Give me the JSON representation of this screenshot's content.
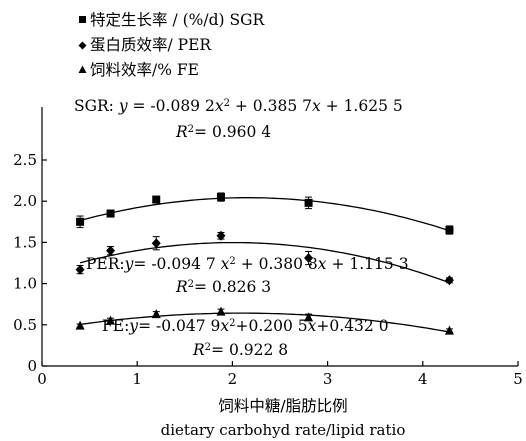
{
  "chart_data": {
    "type": "scatter",
    "x": [
      0.4,
      0.72,
      1.2,
      1.88,
      2.8,
      4.28
    ],
    "xlim": [
      0,
      5
    ],
    "ylim": [
      0,
      2.5
    ],
    "xticks": [
      "0",
      "1",
      "2",
      "3",
      "4",
      "5"
    ],
    "yticks": [
      "0",
      "0.5",
      "1.0",
      "1.5",
      "2.0",
      "2.5"
    ],
    "xlabel_cn": "饲料中糖/脂肪比例",
    "xlabel_en": "dietary carbohyd rate/lipid ratio",
    "grid": false,
    "legend_position": "top-left",
    "series": [
      {
        "name_cn": "特定生长率",
        "name": " / (%/d) SGR",
        "marker": "square",
        "values": [
          1.75,
          1.85,
          2.02,
          2.05,
          1.98,
          1.65
        ],
        "errors": [
          0.07,
          0.04,
          0.03,
          0.05,
          0.07,
          0.05
        ],
        "fit": [
          -0.0892,
          0.3857,
          1.6255
        ],
        "eq_prefix": "SGR: ",
        "eq_body": " = -0.089 2",
        "eq_mid": " + 0.385 7",
        "eq_end": " + 1.625 5",
        "r2": "= 0.960 4"
      },
      {
        "name_cn": "蛋白质效率",
        "name": "/ PER",
        "marker": "diamond",
        "values": [
          1.17,
          1.4,
          1.49,
          1.58,
          1.31,
          1.04
        ],
        "errors": [
          0.05,
          0.05,
          0.08,
          0.04,
          0.08,
          0.03
        ],
        "fit": [
          -0.0947,
          0.3808,
          1.1153
        ],
        "eq_prefix": "PER:",
        "eq_body": "= -0.094 7 ",
        "eq_mid": " + 0.380 8",
        "eq_end": " + 1.115 3",
        "r2": "= 0.826 3"
      },
      {
        "name_cn": "饲料效率",
        "name": "/% FE",
        "marker": "triangle",
        "values": [
          0.49,
          0.55,
          0.63,
          0.66,
          0.59,
          0.43
        ],
        "errors": [
          0.02,
          0.03,
          0.03,
          0.03,
          0.04,
          0.02
        ],
        "fit": [
          -0.0479,
          0.2005,
          0.432
        ],
        "eq_prefix": "FE:",
        "eq_body": "= -0.047 9",
        "eq_mid": "+0.200 5",
        "eq_end": "+0.432 0",
        "r2": "= 0.922 8"
      }
    ]
  }
}
